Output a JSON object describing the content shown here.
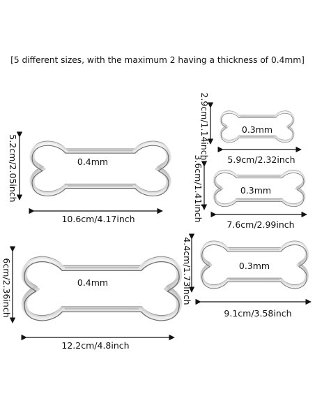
{
  "caption": "[5 different sizes, with the maximum 2 having a thickness of 0.4mm]",
  "cutters": [
    {
      "thickness": "0.4mm",
      "width": "10.6cm/4.17inch",
      "height": "5.2cm/2.05inch"
    },
    {
      "thickness": "0.4mm",
      "width": "12.2cm/4.8inch",
      "height": "6cm/2.36inch"
    },
    {
      "thickness": "0.3mm",
      "width": "5.9cm/2.32inch",
      "height": "2.9cm/1.14inch"
    },
    {
      "thickness": "0.3mm",
      "width": "7.6cm/2.99inch",
      "height": "3.6cm/1.41inch"
    },
    {
      "thickness": "0.3mm",
      "width": "9.1cm/3.58inch",
      "height": "4.4cm/1.73inch"
    }
  ]
}
